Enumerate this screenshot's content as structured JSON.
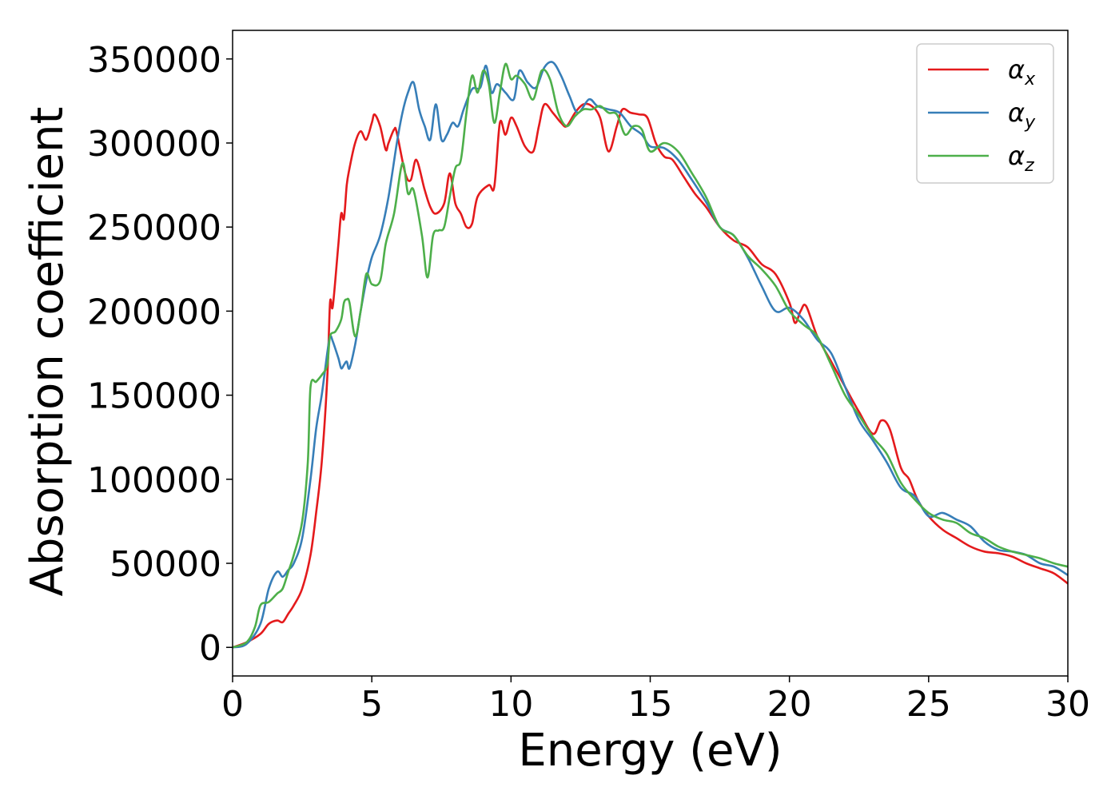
{
  "chart_data": {
    "type": "line",
    "title": "",
    "xlabel": "Energy (eV)",
    "ylabel": "Absorption coefficient",
    "xlim": [
      0,
      30
    ],
    "ylim": [
      -17000,
      367000
    ],
    "xticks": [
      0,
      5,
      10,
      15,
      20,
      25,
      30
    ],
    "yticks": [
      0,
      50000,
      100000,
      150000,
      200000,
      250000,
      300000,
      350000
    ],
    "grid": false,
    "legend_position": "top-right",
    "series": [
      {
        "name": "αx",
        "legend_symbol": "α",
        "legend_subscript": "x",
        "color": "#e41a1c",
        "x": [
          0,
          0.5,
          1.0,
          1.3,
          1.6,
          1.8,
          2.0,
          2.2,
          2.5,
          2.8,
          3.0,
          3.2,
          3.4,
          3.5,
          3.6,
          3.8,
          3.9,
          4.0,
          4.1,
          4.2,
          4.4,
          4.6,
          4.8,
          5.0,
          5.1,
          5.3,
          5.5,
          5.6,
          5.8,
          5.9,
          6.2,
          6.4,
          6.6,
          6.9,
          7.1,
          7.3,
          7.6,
          7.8,
          8.0,
          8.2,
          8.4,
          8.6,
          8.8,
          9.2,
          9.4,
          9.6,
          9.8,
          10.0,
          10.2,
          10.5,
          10.8,
          11.0,
          11.2,
          11.5,
          11.8,
          12.0,
          12.3,
          12.6,
          12.9,
          13.2,
          13.5,
          13.8,
          14.0,
          14.3,
          14.6,
          14.9,
          15.2,
          15.5,
          15.8,
          16.2,
          16.6,
          17.0,
          17.5,
          18.0,
          18.5,
          19.0,
          19.5,
          20.0,
          20.2,
          20.4,
          20.6,
          21.0,
          21.5,
          22.0,
          22.5,
          23.0,
          23.3,
          23.6,
          24.0,
          24.3,
          24.6,
          25.0,
          25.5,
          26.0,
          26.5,
          27.0,
          27.5,
          28.0,
          28.5,
          29.0,
          29.5,
          30.0
        ],
        "values": [
          0,
          3000,
          8000,
          14000,
          16000,
          15000,
          20000,
          25000,
          35000,
          55000,
          80000,
          110000,
          160000,
          205000,
          203000,
          240000,
          258000,
          255000,
          275000,
          285000,
          300000,
          307000,
          302000,
          312000,
          317000,
          310000,
          296000,
          300000,
          308000,
          306000,
          282000,
          278000,
          290000,
          272000,
          262000,
          258000,
          264000,
          282000,
          264000,
          258000,
          250000,
          252000,
          268000,
          275000,
          274000,
          312000,
          305000,
          315000,
          310000,
          298000,
          295000,
          310000,
          323000,
          318000,
          312000,
          310000,
          318000,
          323000,
          322000,
          315000,
          295000,
          310000,
          320000,
          318000,
          317000,
          315000,
          300000,
          292000,
          290000,
          280000,
          270000,
          262000,
          250000,
          242000,
          238000,
          228000,
          222000,
          205000,
          193000,
          200000,
          203000,
          185000,
          170000,
          155000,
          140000,
          127000,
          135000,
          130000,
          107000,
          100000,
          88000,
          78000,
          70000,
          65000,
          60000,
          57000,
          56000,
          54000,
          50000,
          47000,
          44000,
          38000
        ]
      },
      {
        "name": "αy",
        "legend_symbol": "α",
        "legend_subscript": "y",
        "color": "#377eb8",
        "x": [
          0,
          0.5,
          1.0,
          1.3,
          1.6,
          1.8,
          2.0,
          2.2,
          2.5,
          2.8,
          3.0,
          3.2,
          3.4,
          3.5,
          3.6,
          3.8,
          3.9,
          4.0,
          4.1,
          4.2,
          4.4,
          4.6,
          4.8,
          5.0,
          5.3,
          5.6,
          5.9,
          6.1,
          6.3,
          6.5,
          6.7,
          6.9,
          7.1,
          7.3,
          7.5,
          7.7,
          7.9,
          8.1,
          8.3,
          8.6,
          8.9,
          9.1,
          9.3,
          9.5,
          9.8,
          10.1,
          10.3,
          10.6,
          10.9,
          11.2,
          11.5,
          11.8,
          12.1,
          12.4,
          12.8,
          13.1,
          13.5,
          13.9,
          14.3,
          14.7,
          15.0,
          15.5,
          16.0,
          16.5,
          17.0,
          17.5,
          18.0,
          18.5,
          19.0,
          19.5,
          20.0,
          20.5,
          21.0,
          21.5,
          22.0,
          22.5,
          23.0,
          23.5,
          24.0,
          24.5,
          25.0,
          25.5,
          26.0,
          26.5,
          27.0,
          27.5,
          28.0,
          28.5,
          29.0,
          29.5,
          30.0
        ],
        "values": [
          0,
          2000,
          14000,
          35000,
          45000,
          42000,
          46000,
          50000,
          65000,
          100000,
          130000,
          150000,
          175000,
          185000,
          182000,
          172000,
          166000,
          168000,
          170000,
          166000,
          180000,
          200000,
          218000,
          232000,
          245000,
          268000,
          300000,
          318000,
          330000,
          336000,
          320000,
          310000,
          302000,
          323000,
          302000,
          305000,
          312000,
          310000,
          320000,
          332000,
          333000,
          346000,
          330000,
          335000,
          330000,
          326000,
          343000,
          336000,
          333000,
          345000,
          348000,
          340000,
          328000,
          318000,
          326000,
          322000,
          320000,
          318000,
          310000,
          305000,
          298000,
          297000,
          290000,
          278000,
          265000,
          250000,
          245000,
          232000,
          215000,
          200000,
          202000,
          195000,
          183000,
          175000,
          155000,
          135000,
          123000,
          110000,
          95000,
          90000,
          78000,
          80000,
          76000,
          72000,
          63000,
          58000,
          57000,
          55000,
          50000,
          48000,
          43000
        ]
      },
      {
        "name": "αz",
        "legend_symbol": "α",
        "legend_subscript": "z",
        "color": "#4daf4a",
        "x": [
          0,
          0.5,
          0.8,
          1.0,
          1.3,
          1.6,
          1.8,
          2.0,
          2.2,
          2.5,
          2.7,
          2.8,
          3.0,
          3.2,
          3.4,
          3.5,
          3.7,
          3.9,
          4.0,
          4.1,
          4.2,
          4.4,
          4.6,
          4.8,
          5.0,
          5.3,
          5.5,
          5.8,
          6.1,
          6.3,
          6.5,
          6.8,
          7.0,
          7.2,
          7.4,
          7.6,
          7.8,
          8.0,
          8.2,
          8.4,
          8.6,
          8.8,
          9.0,
          9.2,
          9.4,
          9.6,
          9.8,
          10.0,
          10.2,
          10.5,
          10.8,
          11.1,
          11.4,
          11.7,
          12.0,
          12.3,
          12.6,
          12.9,
          13.2,
          13.5,
          13.8,
          14.1,
          14.4,
          14.7,
          15.0,
          15.5,
          16.0,
          16.5,
          17.0,
          17.5,
          18.0,
          18.5,
          19.0,
          19.5,
          20.0,
          20.5,
          21.0,
          21.5,
          22.0,
          22.5,
          23.0,
          23.5,
          24.0,
          24.5,
          25.0,
          25.5,
          26.0,
          26.5,
          27.0,
          27.5,
          28.0,
          28.5,
          29.0,
          29.5,
          30.0
        ],
        "values": [
          0,
          3000,
          12000,
          25000,
          27000,
          32000,
          35000,
          45000,
          55000,
          75000,
          110000,
          155000,
          158000,
          162000,
          168000,
          185000,
          188000,
          195000,
          205000,
          207000,
          205000,
          185000,
          200000,
          222000,
          216000,
          218000,
          240000,
          258000,
          288000,
          270000,
          272000,
          245000,
          220000,
          245000,
          248000,
          250000,
          268000,
          285000,
          290000,
          318000,
          340000,
          330000,
          343000,
          335000,
          312000,
          330000,
          347000,
          338000,
          340000,
          335000,
          326000,
          343000,
          338000,
          318000,
          310000,
          316000,
          320000,
          320000,
          322000,
          318000,
          317000,
          305000,
          310000,
          308000,
          295000,
          300000,
          295000,
          282000,
          268000,
          250000,
          245000,
          233000,
          225000,
          215000,
          200000,
          192000,
          185000,
          168000,
          150000,
          138000,
          125000,
          115000,
          98000,
          88000,
          80000,
          76000,
          74000,
          68000,
          65000,
          60000,
          57000,
          55000,
          53000,
          50000,
          48000
        ]
      }
    ]
  }
}
